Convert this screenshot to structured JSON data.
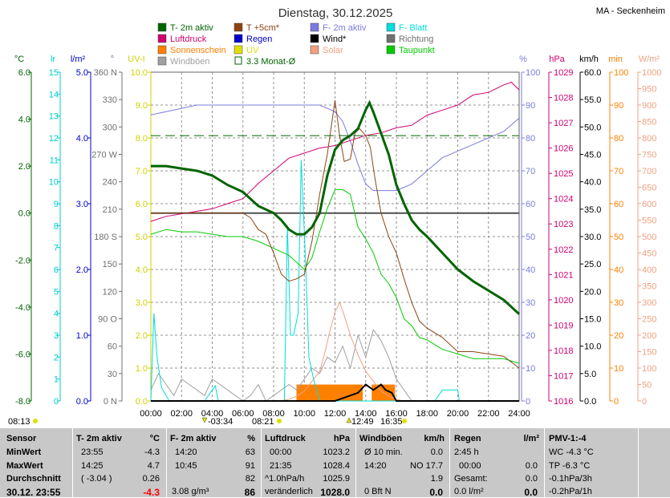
{
  "header": {
    "title": "Dienstag, 30.12.2025",
    "station": "MA - Seckenheim"
  },
  "legend": [
    {
      "label": "T- 2m aktiv",
      "color": "#006400"
    },
    {
      "label": "T +5cm*",
      "color": "#8b4513"
    },
    {
      "label": "F- 2m aktiv",
      "color": "#7b7bdf"
    },
    {
      "label": "F- Blatt",
      "color": "#00dddd"
    },
    {
      "label": "Luftdruck",
      "color": "#d0006f"
    },
    {
      "label": "Regen",
      "color": "#0000cc"
    },
    {
      "label": "Wind*",
      "color": "#000000"
    },
    {
      "label": "Richtung",
      "color": "#707070"
    },
    {
      "label": "Sonnenschein",
      "color": "#ff8000"
    },
    {
      "label": "UV",
      "color": "#e0e000"
    },
    {
      "label": "Solar",
      "color": "#f0a080"
    },
    {
      "label": "Taupunkt",
      "color": "#00cc00"
    },
    {
      "label": "Windböen",
      "color": "#a0a0a0"
    },
    {
      "label": "3.3 Monat-Ø",
      "color": "#006400"
    }
  ],
  "axes": {
    "temp": {
      "unit": "°C",
      "color": "#006400",
      "ticks": [
        "6.0",
        "4.0",
        "2.0",
        "0.0",
        "-2.0",
        "-4.0",
        "-6.0",
        "-8.0"
      ]
    },
    "lux": {
      "unit": "lr",
      "color": "#00cccc",
      "ticks": [
        "15",
        "14",
        "13",
        "12",
        "11",
        "10",
        "9",
        "8",
        "7",
        "6",
        "5",
        "4",
        "3",
        "2",
        "1",
        "0"
      ]
    },
    "rain": {
      "unit": "l/m²",
      "color": "#0000cc",
      "ticks": [
        "5.0",
        "4.0",
        "3.0",
        "2.0",
        "1.0",
        "0.0"
      ]
    },
    "dir": {
      "unit": "°",
      "color": "#707070",
      "ticks": [
        "360 N",
        "330",
        "300",
        "270 W",
        "240",
        "210",
        "180 S",
        "150",
        "120",
        "90 O",
        "60",
        "30",
        "0 N"
      ]
    },
    "uv": {
      "unit": "UV-I",
      "color": "#d0d000",
      "ticks": [
        "10.0",
        "9.0",
        "8.0",
        "7.0",
        "6.0",
        "5.0",
        "4.0",
        "3.0",
        "2.0",
        "1.0",
        "0.0"
      ]
    },
    "hum": {
      "unit": "%",
      "color": "#7b7bdf",
      "ticks": [
        "100",
        "90",
        "80",
        "70",
        "60",
        "50",
        "40",
        "30",
        "20",
        "10",
        "0"
      ]
    },
    "press": {
      "unit": "hPa",
      "color": "#d0006f",
      "ticks": [
        "1029",
        "1028",
        "1027",
        "1026",
        "1025",
        "1024",
        "1023",
        "1022",
        "1021",
        "1020",
        "1019",
        "1018",
        "1017",
        "1016"
      ]
    },
    "wind": {
      "unit": "km/h",
      "color": "#000000",
      "ticks": [
        "60.0",
        "55.0",
        "50.0",
        "45.0",
        "40.0",
        "35.0",
        "30.0",
        "25.0",
        "20.0",
        "15.0",
        "10.0",
        "5.0",
        "0.0"
      ]
    },
    "min": {
      "unit": "min",
      "color": "#ff8000",
      "ticks": [
        "100",
        "90",
        "80",
        "70",
        "60",
        "50",
        "40",
        "30",
        "20",
        "10",
        "0"
      ]
    },
    "solar": {
      "unit": "W/m²",
      "color": "#f0a080",
      "ticks": [
        "1000",
        "950",
        "900",
        "850",
        "800",
        "750",
        "700",
        "650",
        "600",
        "550",
        "500",
        "450",
        "400",
        "350",
        "300",
        "250",
        "200",
        "150",
        "100",
        "50",
        "0"
      ]
    },
    "time": {
      "ticks": [
        "00:00",
        "02:00",
        "04:00",
        "06:00",
        "08:00",
        "10:00",
        "12:00",
        "14:00",
        "16:00",
        "18:00",
        "20:00",
        "22:00",
        "24:00"
      ]
    }
  },
  "sun_events": {
    "sunrise": "08:13",
    "moonset": "-03:34",
    "sunset_label": "08:21",
    "noon": "12:49",
    "sunset": "16:35"
  },
  "chart_data": {
    "type": "line",
    "x_unit": "hour",
    "xlim": [
      0,
      24
    ],
    "series": [
      {
        "name": "T- 2m aktiv",
        "axis": "temp",
        "color": "#006400",
        "x": [
          0,
          1,
          2,
          3,
          4,
          5,
          6,
          7,
          8,
          8.5,
          9,
          9.5,
          10,
          10.5,
          11,
          11.5,
          12,
          12.5,
          13,
          13.5,
          14,
          14.25,
          14.5,
          15,
          15.5,
          16,
          16.5,
          17,
          17.5,
          18,
          19,
          20,
          21,
          22,
          23,
          24
        ],
        "y": [
          2.0,
          2.0,
          1.9,
          1.8,
          1.6,
          1.2,
          0.9,
          0.3,
          0.0,
          -0.3,
          -0.7,
          -0.9,
          -0.9,
          -0.6,
          0.0,
          1.6,
          2.7,
          3.1,
          3.3,
          3.6,
          4.4,
          4.7,
          4.3,
          3.4,
          2.5,
          1.2,
          0.4,
          -0.3,
          -0.7,
          -1.0,
          -1.7,
          -2.4,
          -2.9,
          -3.3,
          -3.7,
          -4.3
        ]
      },
      {
        "name": "T +5cm*",
        "axis": "temp",
        "color": "#8b4513",
        "x": [
          0,
          2,
          4,
          6,
          6.5,
          7,
          7.5,
          8,
          8.5,
          9,
          9.5,
          10,
          10.5,
          11,
          11.5,
          12,
          12.3,
          12.6,
          13,
          13.3,
          13.6,
          14,
          14.3,
          14.6,
          15,
          15.5,
          16,
          16.5,
          17,
          17.5,
          18,
          19,
          20,
          21,
          22,
          23,
          24
        ],
        "y": [
          0,
          0,
          0,
          0,
          -0.2,
          -0.7,
          -0.9,
          -1.7,
          -2.6,
          -2.9,
          -2.8,
          -2.6,
          -1.2,
          0.8,
          2.5,
          4.8,
          3.3,
          2.2,
          2.3,
          3.4,
          3.6,
          3.3,
          2.8,
          1.5,
          0.0,
          -1.0,
          -1.7,
          -2.8,
          -3.8,
          -4.6,
          -4.9,
          -5.3,
          -5.9,
          -5.9,
          -6.0,
          -6.1,
          -6.6
        ]
      },
      {
        "name": "Taupunkt",
        "axis": "temp",
        "color": "#00cc00",
        "x": [
          0,
          1,
          2,
          3,
          4,
          5,
          6,
          7,
          8,
          9,
          10,
          10.5,
          11,
          11.5,
          12,
          12.5,
          13,
          13.5,
          14,
          14.5,
          15,
          15.5,
          16,
          16.5,
          17,
          17.5,
          18,
          19,
          20,
          21,
          22,
          23,
          24
        ],
        "y": [
          -0.9,
          -0.7,
          -0.8,
          -0.8,
          -0.9,
          -1.0,
          -1.0,
          -1.2,
          -1.5,
          -1.8,
          -2.4,
          -1.9,
          -0.8,
          0.2,
          1.0,
          1.0,
          0.8,
          -0.6,
          -1.1,
          -1.7,
          -2.6,
          -3.0,
          -3.6,
          -4.5,
          -4.8,
          -5.3,
          -5.4,
          -5.8,
          -6.0,
          -6.2,
          -6.2,
          -6.2,
          -6.4
        ]
      },
      {
        "name": "F- 2m aktiv",
        "axis": "hum",
        "color": "#7b7bdf",
        "x": [
          0,
          1,
          2,
          3,
          4,
          5,
          6,
          7,
          8,
          9,
          10,
          11,
          12,
          12.5,
          13,
          13.5,
          14,
          14.5,
          15,
          16,
          17,
          18,
          19,
          20,
          21,
          22,
          23,
          24
        ],
        "y": [
          87,
          88,
          89,
          90,
          90,
          90,
          90,
          90,
          90,
          90,
          90,
          90,
          88,
          85,
          79,
          72,
          66,
          64,
          64,
          64,
          66,
          70,
          74,
          76,
          78,
          80,
          82,
          86
        ]
      },
      {
        "name": "Luftdruck",
        "axis": "press",
        "color": "#d0006f",
        "x": [
          0,
          0.5,
          1,
          2,
          3,
          4,
          5,
          6,
          7,
          8,
          9,
          10,
          11,
          12,
          13,
          14,
          15,
          16,
          17,
          18,
          19,
          20,
          21,
          22,
          23,
          23.5,
          24
        ],
        "y": [
          1023.1,
          1023.2,
          1023.3,
          1023.4,
          1023.5,
          1023.6,
          1023.8,
          1024.0,
          1024.6,
          1025.1,
          1025.6,
          1025.8,
          1026.0,
          1026.1,
          1026.3,
          1026.5,
          1026.6,
          1026.8,
          1026.9,
          1027.3,
          1027.5,
          1027.7,
          1028.1,
          1028.2,
          1028.5,
          1028.6,
          1028.3
        ]
      },
      {
        "name": "F- Blatt",
        "axis": "lux",
        "color": "#00dddd",
        "x": [
          0,
          0.2,
          0.4,
          0.7,
          1.2,
          3.5,
          4,
          4.2,
          4.4,
          5,
          8.7,
          8.9,
          9.1,
          9.3,
          9.6,
          9.8,
          10.1,
          10.3,
          10.6,
          11,
          12,
          13,
          14,
          18,
          18.5,
          19,
          19.5,
          20,
          20.1,
          20.5,
          24
        ],
        "y": [
          0,
          4,
          2,
          0.6,
          0,
          0,
          0.5,
          0.7,
          0,
          0,
          0,
          8,
          3,
          3,
          4,
          11,
          6,
          2,
          1,
          0,
          0,
          0,
          0,
          0,
          0,
          0.5,
          0.5,
          0.5,
          0,
          0,
          0
        ]
      },
      {
        "name": "Windböen",
        "axis": "wind",
        "color": "#a0a0a0",
        "x": [
          0,
          0.5,
          1,
          1.5,
          2,
          2.5,
          3,
          3.5,
          4,
          4.5,
          5,
          5.5,
          6,
          6.5,
          7,
          7.5,
          8,
          8.5,
          9,
          9.5,
          10,
          10.5,
          11,
          11.5,
          12,
          12.5,
          13,
          13.5,
          14,
          14.5,
          15,
          15.5,
          16,
          16.5,
          17,
          24
        ],
        "y": [
          2,
          5,
          3,
          1,
          4,
          3,
          2,
          1,
          4,
          3,
          2,
          1,
          0,
          1,
          3,
          0,
          1,
          2,
          3,
          2,
          4,
          6,
          5,
          8,
          7,
          10,
          6,
          12,
          8,
          13,
          11,
          8,
          4,
          2,
          0,
          0
        ]
      },
      {
        "name": "Solar",
        "axis": "solar",
        "color": "#f0a080",
        "x": [
          0,
          8.3,
          9,
          9.5,
          10,
          10.5,
          11,
          11.3,
          11.6,
          12,
          12.3,
          12.6,
          13,
          13.5,
          14,
          14.5,
          15,
          15.5,
          16,
          16.5,
          24
        ],
        "y": [
          0,
          0,
          5,
          15,
          30,
          60,
          90,
          140,
          200,
          270,
          300,
          260,
          200,
          140,
          90,
          60,
          30,
          15,
          5,
          0,
          0
        ]
      },
      {
        "name": "Wind*",
        "axis": "wind",
        "color": "#000000",
        "x": [
          0,
          12,
          12.5,
          13,
          13.5,
          14,
          14.5,
          15,
          15.3,
          15.7,
          16,
          24
        ],
        "y": [
          0,
          0,
          0.5,
          1.0,
          1.5,
          3.0,
          2.0,
          3.0,
          2.0,
          1.5,
          0,
          0
        ]
      },
      {
        "name": "3.3 Monat-Ø",
        "axis": "temp",
        "color": "#006400",
        "x": [
          0,
          24
        ],
        "y": [
          3.3,
          3.3
        ]
      }
    ],
    "sunshine_bars": {
      "name": "Sonnenschein",
      "axis": "min",
      "color": "#ff8000",
      "x": [
        9.7,
        10.0,
        10.3,
        10.6,
        10.9,
        11.2,
        11.5,
        11.8,
        12.1,
        12.4,
        12.7,
        13.0,
        13.3,
        13.6,
        14.6,
        15.0,
        15.3,
        15.7
      ],
      "y": [
        5,
        5,
        5,
        5,
        5,
        5,
        5,
        5,
        5,
        5,
        5,
        5,
        5,
        5,
        5,
        5,
        5,
        5
      ]
    },
    "flat_line": {
      "axis": "temp",
      "value": 0.0,
      "x_start": 0,
      "x_end": 24,
      "color": "#505050"
    }
  },
  "table": {
    "sensor": {
      "header": "Sensor",
      "rows": [
        "MinWert",
        "MaxWert",
        "Durchschnitt",
        "30.12. 23:55"
      ]
    },
    "temp": {
      "header": "T- 2m aktiv",
      "unit": "°C",
      "rows": [
        [
          "23:55",
          "-4.3"
        ],
        [
          "14:25",
          "4.7"
        ],
        [
          "( -3.04 )",
          "0.26"
        ],
        [
          "",
          "-4.3"
        ]
      ]
    },
    "hum": {
      "header": "F- 2m aktiv",
      "unit": "%",
      "rows": [
        [
          "14:20",
          "63"
        ],
        [
          "10:45",
          "91"
        ],
        [
          "",
          "82"
        ],
        [
          "3.08 g/m³",
          "86"
        ]
      ]
    },
    "press": {
      "header": "Luftdruck",
      "unit": "hPa",
      "rows": [
        [
          "00:00",
          "1023.2"
        ],
        [
          "21:35",
          "1028.4"
        ],
        [
          "^1.0hPa/h",
          "1025.9"
        ],
        [
          "veränderlich",
          "1028.0"
        ]
      ]
    },
    "wind": {
      "header": "Windböen",
      "unit": "km/h",
      "rows": [
        [
          "Ø 10 min.",
          "0.0"
        ],
        [
          "14:20",
          "NO 17.7"
        ],
        [
          "",
          "1.9"
        ],
        [
          "0 Bft N",
          "0.0"
        ]
      ]
    },
    "rain": {
      "header": "Regen",
      "unit": "l/m²",
      "rows": [
        [
          "2:45 h",
          ""
        ],
        [
          "00:00",
          "0.0"
        ],
        [
          "Gesamt:",
          "0.0"
        ],
        [
          "0.0 l/m²",
          "0.0"
        ]
      ]
    },
    "pmv": {
      "header": "PMV-1:-4",
      "rows": [
        "WC -4.3 °C",
        "TP -6.3 °C",
        "-0.1hPa/3h",
        "-0.2hPa/1h"
      ]
    }
  }
}
